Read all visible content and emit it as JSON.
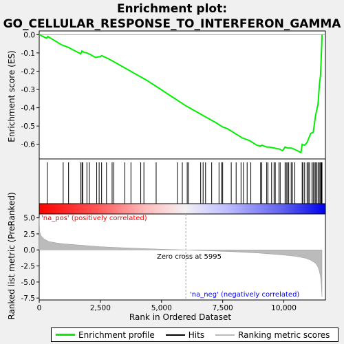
{
  "title_line1": "Enrichment plot:",
  "title_line2": "GO_CELLULAR_RESPONSE_TO_INTERFERON_GAMMA",
  "legend": {
    "profile": "Enrichment profile",
    "hits": "Hits",
    "scores": "Ranking metric scores"
  },
  "colors": {
    "profile": "#00ee00",
    "hits": "#000000",
    "scores": "#bbbbbb",
    "pos": "#ff0000",
    "neg": "#0000ff"
  },
  "chart_data": [
    {
      "name": "enrichment",
      "type": "line",
      "ylabel": "Enrichment score (ES)",
      "ylim": [
        -0.68,
        0.02
      ],
      "yticks": [
        0.0,
        -0.1,
        -0.2,
        -0.3,
        -0.4,
        -0.5,
        -0.6
      ],
      "ytick_labels": [
        "0.0",
        "-0.1",
        "-0.2",
        "-0.3",
        "-0.4",
        "-0.5",
        "-0.6"
      ],
      "xlim": [
        0,
        11700
      ],
      "x": [
        0,
        300,
        350,
        600,
        900,
        1000,
        1200,
        1400,
        1700,
        1750,
        1800,
        1950,
        2100,
        2300,
        2500,
        2550,
        2800,
        3000,
        3200,
        3600,
        4000,
        4400,
        4800,
        5200,
        5600,
        6000,
        6400,
        6800,
        7200,
        7500,
        7700,
        8000,
        8300,
        8600,
        8900,
        9050,
        9100,
        9300,
        9400,
        9600,
        9800,
        9950,
        10050,
        10150,
        10300,
        10400,
        10550,
        10700,
        10750,
        10850,
        10950,
        11100,
        11200,
        11300,
        11400,
        11450,
        11500,
        11530,
        11550,
        11560
      ],
      "y": [
        0.0,
        -0.02,
        -0.01,
        -0.03,
        -0.055,
        -0.06,
        -0.07,
        -0.085,
        -0.105,
        -0.09,
        -0.095,
        -0.1,
        -0.11,
        -0.125,
        -0.12,
        -0.115,
        -0.13,
        -0.145,
        -0.16,
        -0.19,
        -0.22,
        -0.25,
        -0.285,
        -0.32,
        -0.355,
        -0.39,
        -0.42,
        -0.45,
        -0.48,
        -0.505,
        -0.515,
        -0.54,
        -0.565,
        -0.58,
        -0.605,
        -0.61,
        -0.605,
        -0.615,
        -0.615,
        -0.62,
        -0.625,
        -0.635,
        -0.615,
        -0.62,
        -0.62,
        -0.625,
        -0.635,
        -0.645,
        -0.6,
        -0.605,
        -0.59,
        -0.54,
        -0.535,
        -0.44,
        -0.38,
        -0.28,
        -0.22,
        -0.12,
        -0.05,
        0.0
      ]
    },
    {
      "name": "hits",
      "type": "scatter",
      "x": [
        330,
        980,
        1200,
        1700,
        1750,
        1780,
        1950,
        2050,
        2350,
        2450,
        2550,
        2750,
        2980,
        3050,
        3500,
        3750,
        4150,
        4280,
        4780,
        5650,
        5850,
        6050,
        6100,
        6600,
        6700,
        6800,
        7050,
        7350,
        7450,
        7500,
        7850,
        8050,
        8250,
        8350,
        8500,
        8650,
        9050,
        9100,
        9300,
        9350,
        9500,
        9600,
        9650,
        9800,
        9850,
        10050,
        10100,
        10150,
        10200,
        10300,
        10350,
        10450,
        10750,
        10780,
        10850,
        10950,
        11000,
        11050,
        11150,
        11200,
        11250,
        11300,
        11350,
        11400,
        11450,
        11500,
        11520,
        11540,
        11560
      ]
    },
    {
      "name": "ranking_metric",
      "type": "area",
      "xlabel": "Rank in Ordered Dataset",
      "ylabel": "Ranked list metric (PreRanked)",
      "ylim": [
        -7.8,
        5.6
      ],
      "yticks": [
        5.0,
        2.5,
        0.0,
        -2.5,
        -5.0,
        -7.5
      ],
      "ytick_labels": [
        "5.0",
        "2.5",
        "0.0",
        "-2.5",
        "-5.0",
        "-7.5"
      ],
      "xlim": [
        0,
        11700
      ],
      "xticks": [
        0,
        2500,
        5000,
        7500,
        10000
      ],
      "xtick_labels": [
        "0",
        "2,500",
        "5,000",
        "7,500",
        "10,000"
      ],
      "x": [
        0,
        20,
        80,
        200,
        400,
        700,
        1000,
        1500,
        2000,
        2500,
        3000,
        4000,
        5000,
        5995,
        7000,
        8000,
        9000,
        10000,
        10500,
        10900,
        11100,
        11300,
        11400,
        11450,
        11500,
        11530,
        11560
      ],
      "y": [
        5.0,
        2.8,
        2.2,
        1.7,
        1.3,
        1.1,
        0.95,
        0.8,
        0.65,
        0.5,
        0.4,
        0.25,
        0.1,
        0.0,
        -0.15,
        -0.3,
        -0.5,
        -0.8,
        -1.0,
        -1.3,
        -1.6,
        -2.1,
        -2.7,
        -3.3,
        -4.2,
        -5.5,
        -7.3
      ],
      "zero_cross_label": "Zero cross at 5995",
      "pos_label": "'na_pos' (positively correlated)",
      "neg_label": "'na_neg' (negatively correlated)"
    }
  ]
}
